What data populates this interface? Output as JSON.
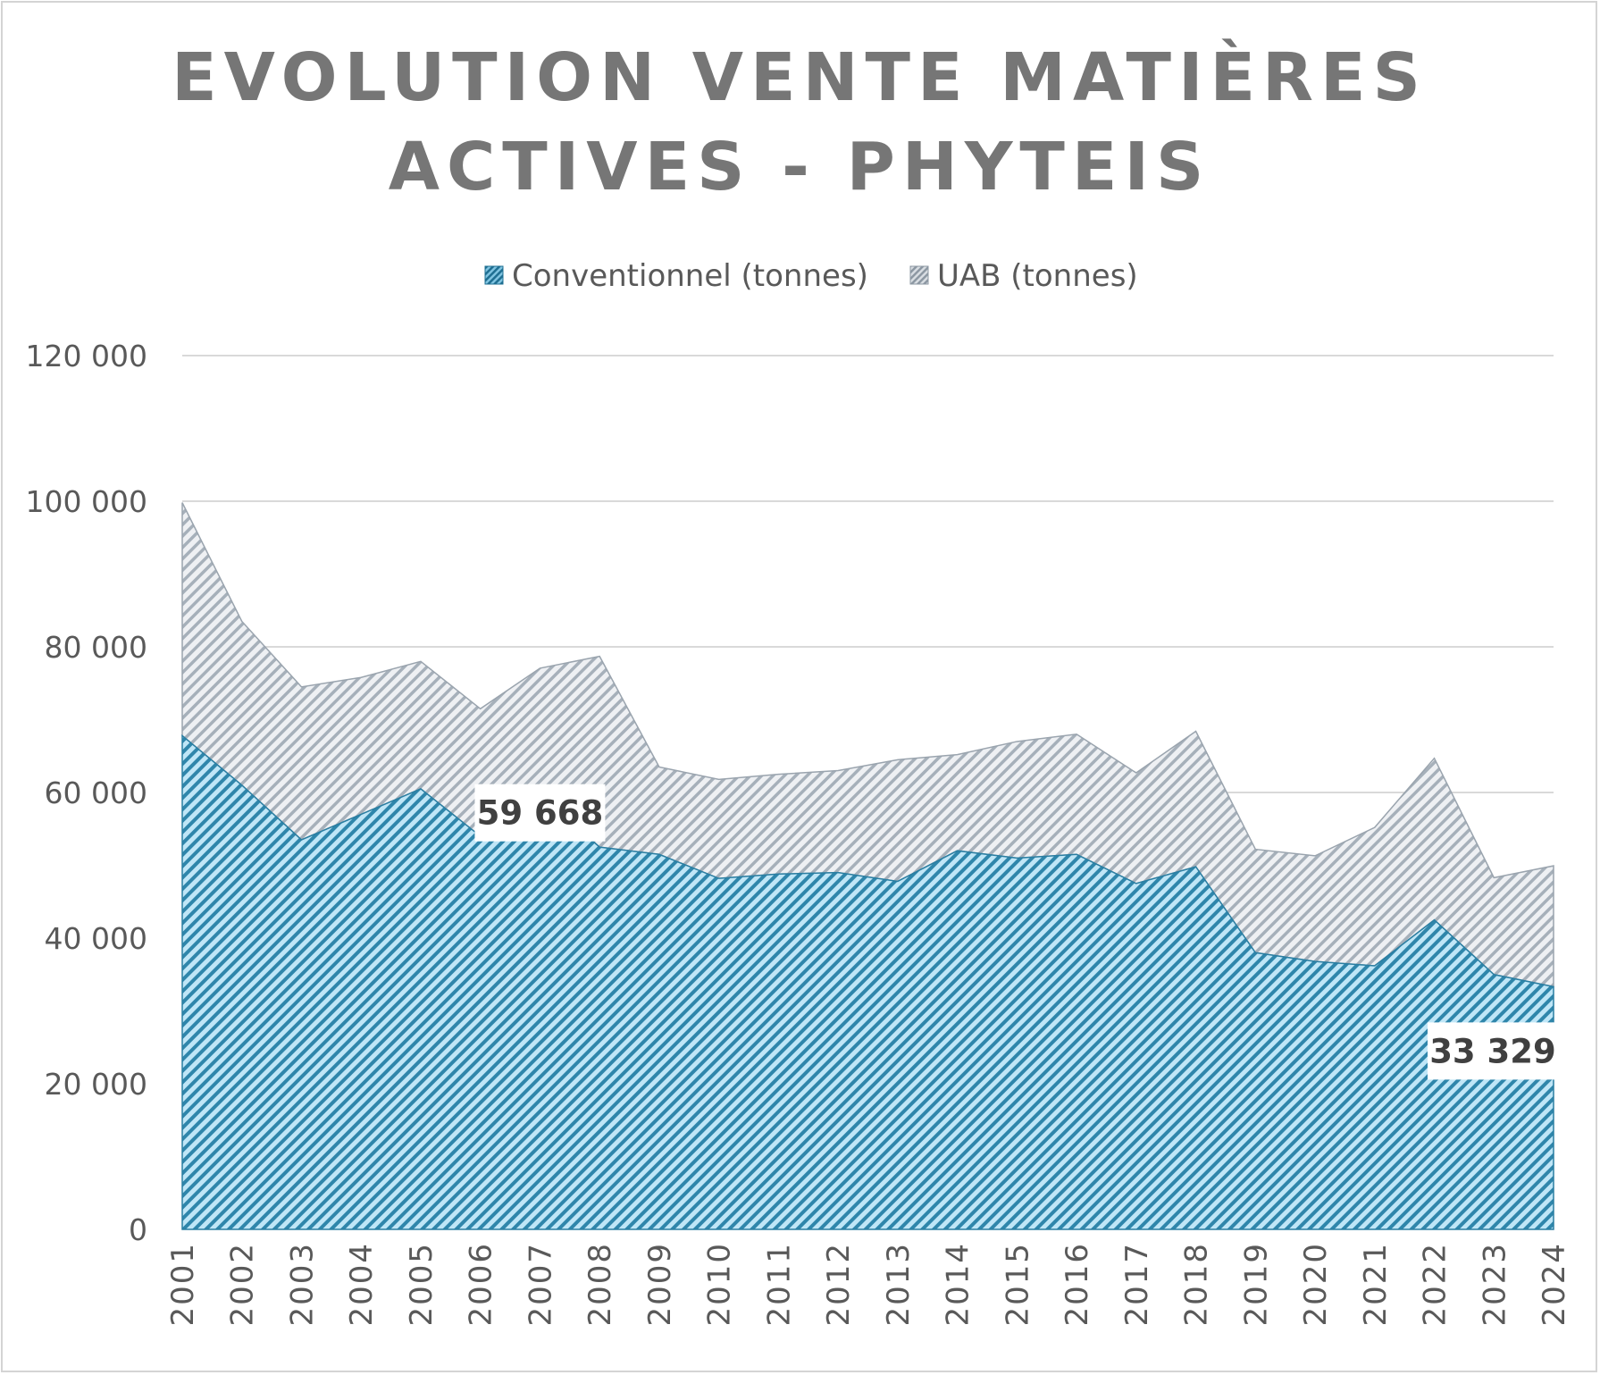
{
  "chart_data": {
    "type": "area",
    "stacked": true,
    "title_lines": [
      "EVOLUTION VENTE MATIÈRES",
      "ACTIVES - PHYTEIS"
    ],
    "categories": [
      "2001",
      "2002",
      "2003",
      "2004",
      "2005",
      "2006",
      "2007",
      "2008",
      "2009",
      "2010",
      "2011",
      "2012",
      "2013",
      "2014",
      "2015",
      "2016",
      "2017",
      "2018",
      "2019",
      "2020",
      "2021",
      "2022",
      "2023",
      "2024"
    ],
    "series": [
      {
        "name": "Conventionnel (tonnes)",
        "color": "#2e86ab",
        "values": [
          67800,
          61000,
          53500,
          57000,
          60500,
          54000,
          59668,
          52500,
          51500,
          48200,
          48800,
          49000,
          47800,
          52000,
          51000,
          51500,
          47500,
          49800,
          38000,
          36800,
          36200,
          42500,
          35000,
          33329
        ]
      },
      {
        "name": "UAB (tonnes)",
        "color": "#a6b0ba",
        "values": [
          32000,
          22500,
          21000,
          18800,
          17500,
          17500,
          17400,
          26200,
          12000,
          13600,
          13700,
          14000,
          16700,
          13200,
          16000,
          16500,
          15200,
          18600,
          14200,
          14500,
          19000,
          22200,
          13300,
          16600
        ]
      }
    ],
    "ylim": [
      0,
      120000
    ],
    "yticks": [
      0,
      20000,
      40000,
      60000,
      80000,
      100000,
      120000
    ],
    "ytick_labels": [
      "0",
      "20 000",
      "40 000",
      "60 000",
      "80 000",
      "100 000",
      "120 000"
    ],
    "legend_position": "top-center",
    "grid": true,
    "annotations": [
      {
        "series": 0,
        "index": 6,
        "label": "59 668"
      },
      {
        "series": 0,
        "index": 23,
        "label": "33 329"
      }
    ]
  }
}
